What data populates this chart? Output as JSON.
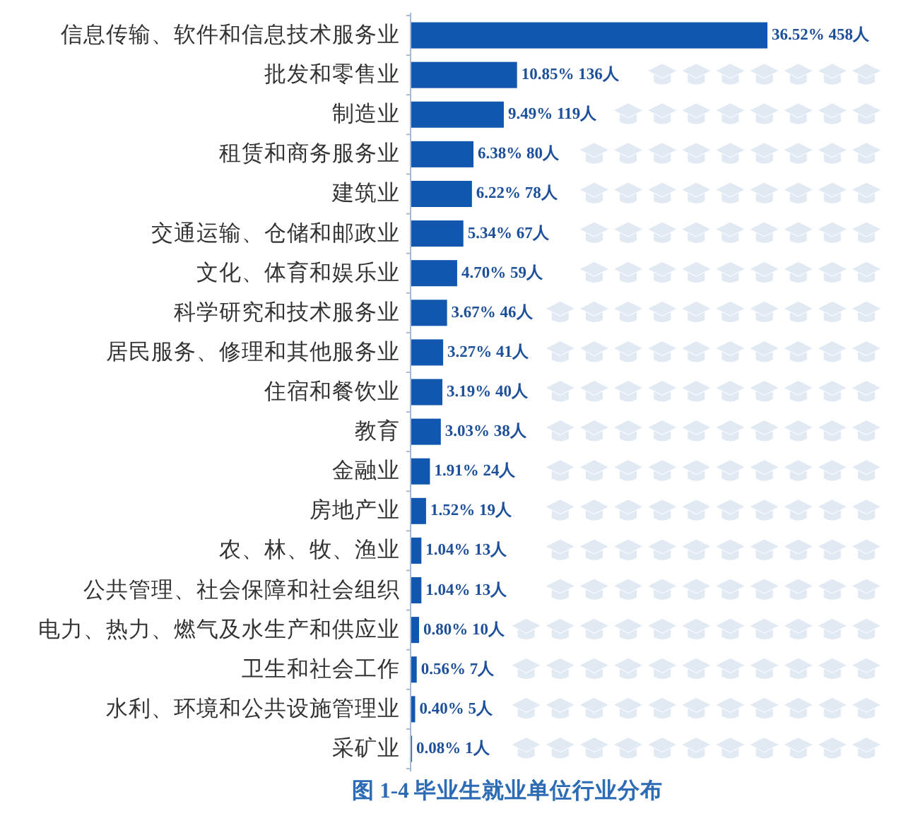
{
  "chart_data": {
    "type": "bar",
    "orientation": "horizontal",
    "title": "图 1-4  毕业生就业单位行业分布",
    "categories": [
      "信息传输、软件和信息技术服务业",
      "批发和零售业",
      "制造业",
      "租赁和商务服务业",
      "建筑业",
      "交通运输、仓储和邮政业",
      "文化、体育和娱乐业",
      "科学研究和技术服务业",
      "居民服务、修理和其他服务业",
      "住宿和餐饮业",
      "教育",
      "金融业",
      "房地产业",
      "农、林、牧、渔业",
      "公共管理、社会保障和社会组织",
      "电力、热力、燃气及水生产和供应业",
      "卫生和社会工作",
      "水利、环境和公共设施管理业",
      "采矿业"
    ],
    "values": [
      458,
      136,
      119,
      80,
      78,
      67,
      59,
      46,
      41,
      40,
      38,
      24,
      19,
      13,
      13,
      10,
      7,
      5,
      1
    ],
    "value_labels": [
      "36.52% 458人",
      "10.85% 136人",
      "9.49% 119人",
      "6.38% 80人",
      "6.22% 78人",
      "5.34% 67人",
      "4.70% 59人",
      "3.67% 46人",
      "3.27% 41人",
      "3.19% 40人",
      "3.03% 38人",
      "1.91% 24人",
      "1.52% 19人",
      "1.04% 13人",
      "1.04% 13人",
      "0.80% 10人",
      "0.56% 7人",
      "0.40% 5人",
      "0.08% 1人"
    ],
    "color": "#1157b0"
  }
}
